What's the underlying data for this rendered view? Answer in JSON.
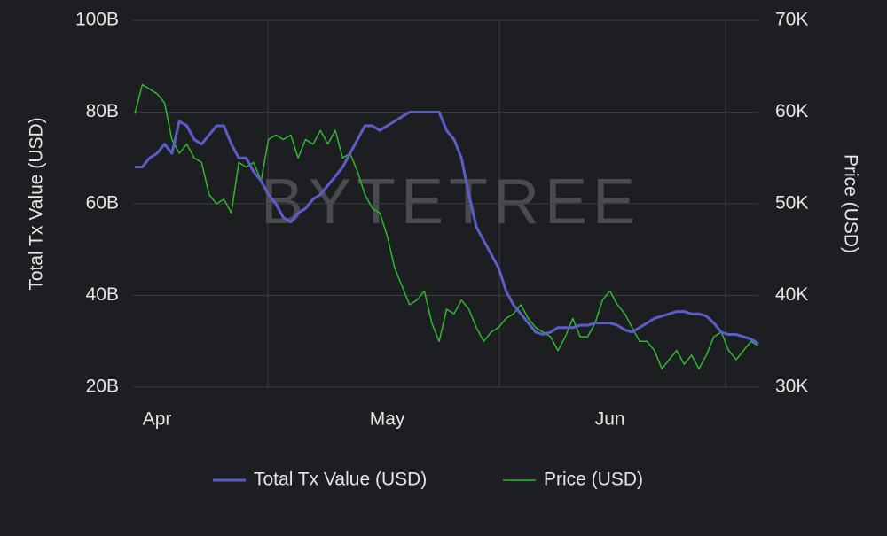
{
  "chart_data": {
    "type": "line",
    "watermark": "BYTETREE",
    "y_label": "Total Tx Value (USD)",
    "y2_label": "Price (USD)",
    "categories": [
      null,
      null,
      null,
      "Apr",
      null,
      null,
      null,
      null,
      null,
      null,
      null,
      null,
      null,
      null,
      null,
      null,
      null,
      null,
      null,
      null,
      null,
      null,
      null,
      null,
      null,
      null,
      null,
      null,
      null,
      null,
      null,
      null,
      null,
      null,
      "May",
      null,
      null,
      null,
      null,
      null,
      null,
      null,
      null,
      null,
      null,
      null,
      null,
      null,
      null,
      null,
      null,
      null,
      null,
      null,
      null,
      null,
      null,
      null,
      null,
      null,
      null,
      null,
      null,
      null,
      "Jun",
      null,
      null,
      null,
      null,
      null,
      null,
      null,
      null,
      null,
      null,
      null,
      null,
      null,
      null,
      null,
      null,
      null,
      null,
      null,
      null
    ],
    "ylim": [
      20,
      100
    ],
    "yticks": [
      {
        "value": 20,
        "label": "20B"
      },
      {
        "value": 40,
        "label": "40B"
      },
      {
        "value": 60,
        "label": "60B"
      },
      {
        "value": 80,
        "label": "80B"
      },
      {
        "value": 100,
        "label": "100B"
      }
    ],
    "y2lim": [
      30000,
      70000
    ],
    "y2ticks": [
      {
        "value": 30000,
        "label": "30K"
      },
      {
        "value": 40000,
        "label": "40K"
      },
      {
        "value": 50000,
        "label": "50K"
      },
      {
        "value": 60000,
        "label": "60K"
      },
      {
        "value": 70000,
        "label": "70K"
      }
    ],
    "grid": true,
    "series": [
      {
        "name": "Total Tx Value (USD)",
        "color": "#5a5fc8",
        "width": 3,
        "values": [
          68,
          68,
          70,
          71,
          73,
          71,
          78,
          77,
          74,
          73,
          75,
          77,
          77,
          73,
          70,
          70,
          67,
          65,
          62,
          60,
          57,
          56,
          58,
          59,
          61,
          62,
          64,
          66,
          68,
          71,
          74,
          77,
          77,
          76,
          77,
          78,
          79,
          80,
          80,
          80,
          80,
          80,
          76,
          74,
          70,
          62,
          55,
          52,
          49,
          46,
          41,
          38,
          36,
          34,
          32,
          31.5,
          32,
          33,
          33,
          33,
          33.5,
          33.5,
          34,
          34,
          34,
          33.5,
          32.5,
          32,
          33,
          34,
          35,
          35.5,
          36,
          36.5,
          36.5,
          36,
          36,
          35.5,
          34,
          32,
          31.5,
          31.5,
          31,
          30.5,
          29.5
        ]
      },
      {
        "name": "Price (USD)",
        "color": "#2fb82f",
        "width": 1.5,
        "axis": "y2",
        "values": [
          59800,
          63000,
          62500,
          62000,
          61000,
          57000,
          55500,
          56500,
          55000,
          54500,
          51000,
          50000,
          50500,
          49000,
          54500,
          54000,
          54500,
          52500,
          57000,
          57500,
          57000,
          57500,
          55000,
          57000,
          56500,
          58000,
          56500,
          58000,
          55000,
          55500,
          53500,
          51000,
          49500,
          49000,
          46500,
          43000,
          41000,
          39000,
          39500,
          40500,
          37000,
          35000,
          38500,
          38000,
          39500,
          38500,
          36500,
          35000,
          36000,
          36500,
          37500,
          38000,
          39000,
          37500,
          36500,
          36000,
          35500,
          34000,
          35500,
          37500,
          35500,
          35500,
          37000,
          39500,
          40500,
          39000,
          38000,
          36500,
          35000,
          35000,
          34000,
          32000,
          33000,
          34000,
          32500,
          33500,
          32000,
          33500,
          35500,
          36000,
          34000,
          33000,
          34000,
          35000,
          34500
        ]
      }
    ]
  }
}
